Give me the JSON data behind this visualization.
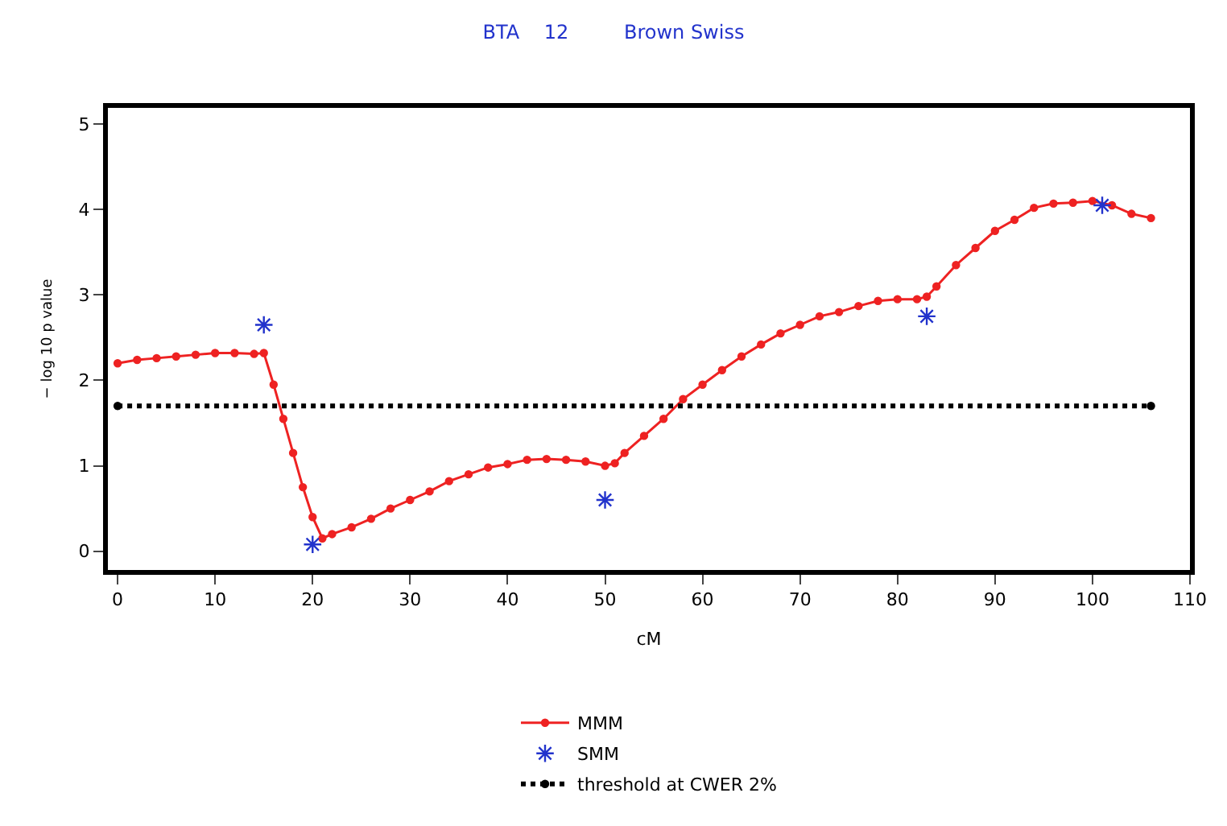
{
  "chart_data": {
    "type": "line",
    "title": "BTA    12         Brown Swiss",
    "xlabel": "cM",
    "ylabel": "− log 10 p value",
    "xlim": [
      -1,
      110
    ],
    "xticks": [
      0,
      10,
      20,
      30,
      40,
      50,
      60,
      70,
      80,
      90,
      100,
      110
    ],
    "ylim": [
      -0.22,
      5.19
    ],
    "yticks": [
      0,
      1,
      2,
      3,
      4,
      5
    ],
    "legend": "bottom",
    "series": [
      {
        "name": "MMM",
        "color": "#ee2222",
        "marker": "circle",
        "line_style": "solid",
        "x": [
          0,
          2,
          4,
          6,
          8,
          10,
          12,
          14,
          15,
          16,
          17,
          18,
          19,
          20,
          21,
          22,
          24,
          26,
          28,
          30,
          32,
          34,
          36,
          38,
          40,
          42,
          44,
          46,
          48,
          50,
          51,
          52,
          54,
          56,
          58,
          60,
          62,
          64,
          66,
          68,
          70,
          72,
          74,
          76,
          78,
          80,
          82,
          83,
          84,
          86,
          88,
          90,
          92,
          94,
          96,
          98,
          100,
          102,
          104,
          106
        ],
        "values": [
          2.2,
          2.24,
          2.26,
          2.28,
          2.3,
          2.32,
          2.32,
          2.31,
          2.32,
          1.95,
          1.55,
          1.15,
          0.75,
          0.4,
          0.15,
          0.2,
          0.28,
          0.38,
          0.5,
          0.6,
          0.7,
          0.82,
          0.9,
          0.98,
          1.02,
          1.07,
          1.08,
          1.07,
          1.05,
          1.0,
          1.03,
          1.15,
          1.35,
          1.55,
          1.78,
          1.95,
          2.12,
          2.28,
          2.42,
          2.55,
          2.65,
          2.75,
          2.8,
          2.87,
          2.93,
          2.95,
          2.95,
          2.98,
          3.1,
          3.35,
          3.55,
          3.75,
          3.88,
          4.02,
          4.07,
          4.08,
          4.1,
          4.05,
          3.95,
          3.9
        ]
      },
      {
        "name": "SMM",
        "type": "scatter",
        "color": "#2233cc",
        "marker": "cross",
        "x": [
          15,
          20,
          50,
          83,
          101
        ],
        "values": [
          2.65,
          0.08,
          0.6,
          2.75,
          4.05
        ]
      },
      {
        "name": "threshold at CWER 2%",
        "color": "#000000",
        "marker": "circle",
        "line_style": "dotted",
        "x": [
          0,
          106
        ],
        "values": [
          1.7,
          1.7
        ]
      }
    ]
  }
}
